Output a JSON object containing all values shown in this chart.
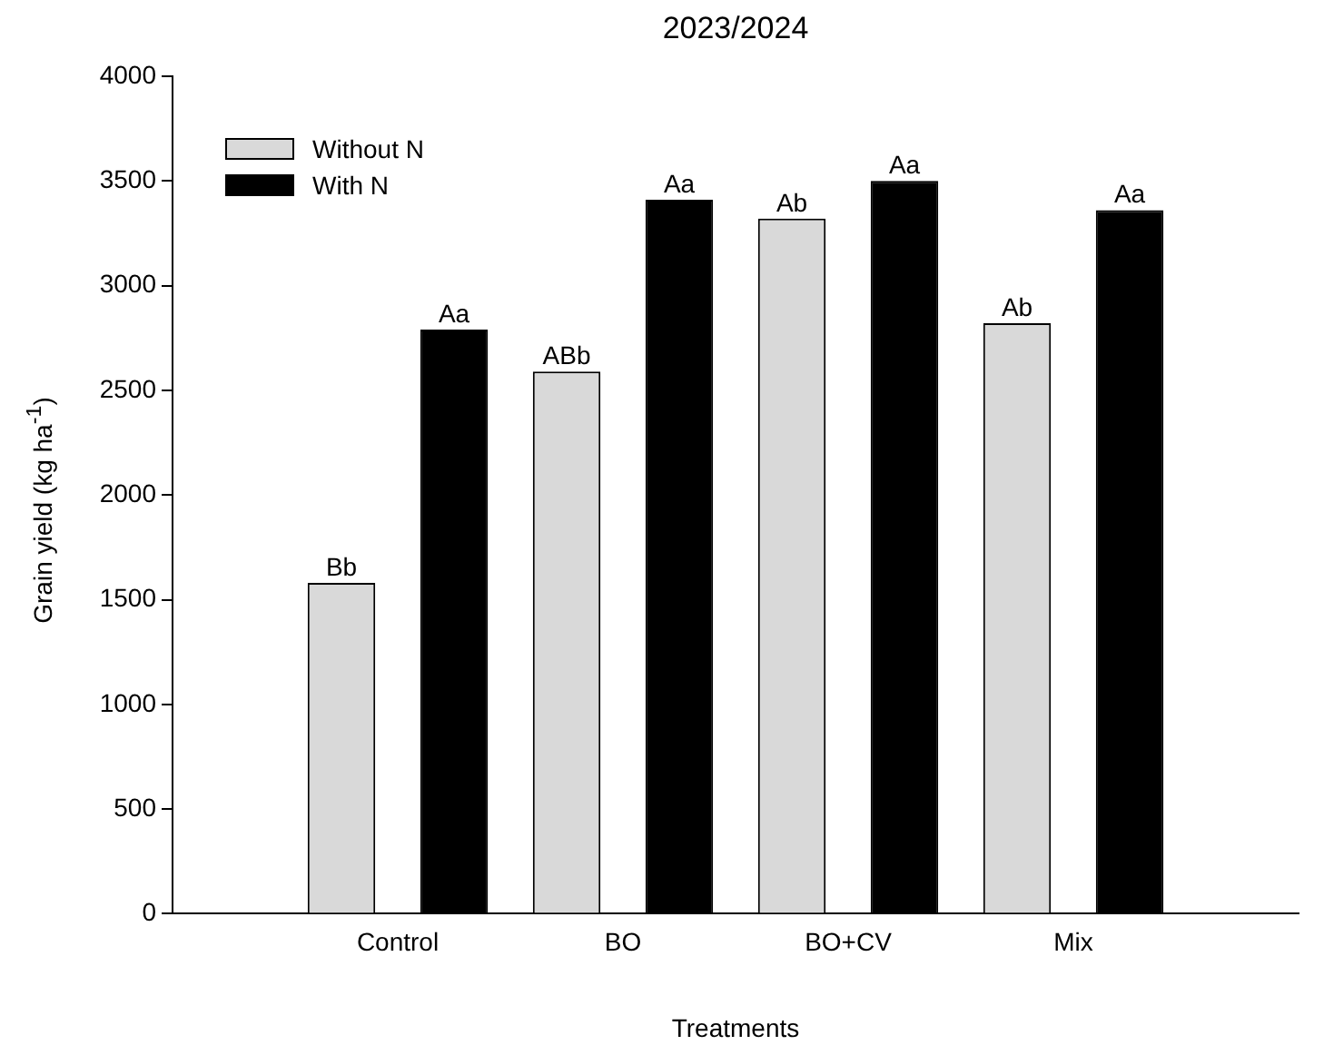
{
  "chart_data": {
    "type": "bar",
    "title": "2023/2024",
    "xlabel": "Treatments",
    "ylabel": "Grain yield (kg ha$^{-1}$)",
    "categories": [
      null,
      "Control",
      "BO",
      "BO+CV",
      "Mix",
      null
    ],
    "series": [
      {
        "name": "Without N",
        "color": "#d9d9d9",
        "values": [
          null,
          1580,
          2590,
          3320,
          2820,
          null
        ],
        "value_labels": [
          null,
          "Bb",
          "ABb",
          "Ab",
          "Ab",
          null
        ]
      },
      {
        "name": "With N",
        "color": "#000000",
        "values": [
          null,
          2790,
          3410,
          3500,
          3360,
          null
        ],
        "value_labels": [
          null,
          "Aa",
          "Aa",
          "Aa",
          "Aa",
          null
        ]
      }
    ],
    "ylim": [
      0,
      4000
    ],
    "yticks": [
      0,
      500,
      1000,
      1500,
      2000,
      2500,
      3000,
      3500,
      4000
    ],
    "grid": false,
    "legend": "top left"
  }
}
